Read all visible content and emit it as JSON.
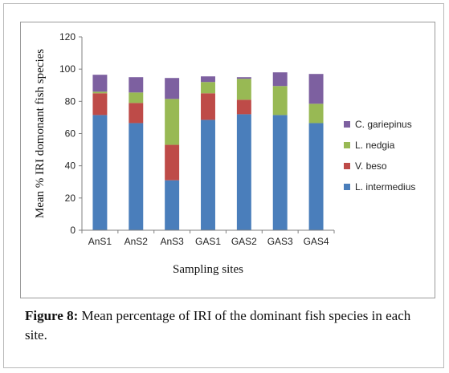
{
  "caption": {
    "label": "Figure 8:",
    "text": " Mean percentage of IRI of the dominant fish species in each site."
  },
  "chart_data": {
    "type": "bar",
    "stacked": true,
    "title": "",
    "xlabel": "Sampling sites",
    "ylabel": "Mean % IRI domonant fish species",
    "ylim": [
      0,
      120
    ],
    "yticks": [
      0,
      20,
      40,
      60,
      80,
      100,
      120
    ],
    "grid": false,
    "legend_position": "right",
    "categories": [
      "AnS1",
      "AnS2",
      "AnS3",
      "GAS1",
      "GAS2",
      "GAS3",
      "GAS4"
    ],
    "series": [
      {
        "name": "L. intermedius",
        "color": "#4a7ebb",
        "values": [
          71.5,
          66.5,
          31,
          68.5,
          72,
          71.5,
          66.5
        ]
      },
      {
        "name": "V. beso",
        "color": "#be4b48",
        "values": [
          13.5,
          12.5,
          22,
          16.5,
          9,
          0,
          0
        ]
      },
      {
        "name": "L. nedgia",
        "color": "#98b954",
        "values": [
          1,
          6.5,
          28.5,
          7,
          13,
          18,
          12
        ]
      },
      {
        "name": "C. gariepinus",
        "color": "#7d60a0",
        "values": [
          10.5,
          9.5,
          13,
          3.5,
          1,
          8.5,
          18.5
        ]
      }
    ]
  }
}
